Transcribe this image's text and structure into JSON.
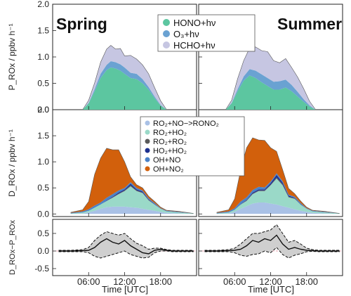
{
  "chart_data": {
    "type": "area",
    "x_ticks": [
      "06:00",
      "12:00",
      "18:00"
    ],
    "xlabel": "Time [UTC]",
    "xlim": [
      "00:00",
      "24:00"
    ],
    "columns": [
      "Spring",
      "Summer"
    ],
    "colors": {
      "HONO": "#5cc6a0",
      "O3": "#6aa2d2",
      "HCHO": "#c6c6e2",
      "RONO2": "#a9c1e6",
      "RO2HO2": "#9ad9c8",
      "RO2RO2": "#5a5a5a",
      "HO2HO2": "#1c2f8e",
      "OHNO": "#4a82c8",
      "OHNO2": "#d2600c"
    },
    "panels": [
      {
        "id": "production",
        "ylabel": "P_ROx / ppbv h⁻¹",
        "ylim": [
          0,
          2.0
        ],
        "yticks": [
          "0.0",
          "0.5",
          "1.0",
          "1.5",
          "2.0"
        ],
        "legend": [
          "HONO+hν",
          "O₃+hν",
          "HCHO+hν"
        ],
        "series_keys": [
          "HONO",
          "O3",
          "HCHO"
        ],
        "spring": {
          "x": [
            5,
            6,
            7,
            8,
            9,
            9.7,
            10.5,
            11.3,
            12,
            13,
            14,
            15,
            16,
            17,
            18,
            19
          ],
          "HONO": [
            0,
            0.12,
            0.35,
            0.6,
            0.75,
            0.8,
            0.78,
            0.74,
            0.68,
            0.6,
            0.58,
            0.5,
            0.38,
            0.22,
            0.08,
            0
          ],
          "O3": [
            0,
            0.01,
            0.04,
            0.08,
            0.1,
            0.12,
            0.12,
            0.12,
            0.12,
            0.1,
            0.1,
            0.08,
            0.05,
            0.03,
            0.01,
            0
          ],
          "HCHO": [
            0,
            0.05,
            0.12,
            0.22,
            0.3,
            0.3,
            0.25,
            0.3,
            0.22,
            0.33,
            0.28,
            0.27,
            0.25,
            0.17,
            0.08,
            0
          ]
        },
        "summer": {
          "x": [
            4.5,
            5.5,
            6.5,
            7.5,
            8.5,
            9.5,
            10.5,
            11.5,
            12.5,
            13.5,
            14.5,
            15.5,
            16.5,
            17.5,
            18.5,
            19.5
          ],
          "HONO": [
            0,
            0.12,
            0.35,
            0.55,
            0.65,
            0.6,
            0.52,
            0.45,
            0.38,
            0.38,
            0.42,
            0.35,
            0.25,
            0.15,
            0.06,
            0
          ],
          "O3": [
            0,
            0.01,
            0.04,
            0.08,
            0.12,
            0.14,
            0.15,
            0.15,
            0.15,
            0.16,
            0.15,
            0.12,
            0.09,
            0.05,
            0.02,
            0
          ],
          "HCHO": [
            0,
            0.05,
            0.2,
            0.3,
            0.4,
            0.45,
            0.45,
            0.5,
            0.4,
            0.35,
            0.4,
            0.33,
            0.28,
            0.2,
            0.08,
            0
          ]
        }
      },
      {
        "id": "destruction",
        "ylabel": "D_ROx / ppbv h⁻¹",
        "ylim": [
          -0.05,
          2.0
        ],
        "yticks": [
          "0.0",
          "0.5",
          "1.0",
          "1.5",
          "2.0"
        ],
        "legend": [
          "RO₂+NO−>RONO₂",
          "RO₂+HO₂",
          "RO₂+RO₂",
          "HO₂+HO₂",
          "OH+NO",
          "OH+NO₂"
        ],
        "series_keys": [
          "RONO2",
          "RO2HO2",
          "RO2RO2",
          "HO2HO2",
          "OHNO",
          "OHNO2"
        ],
        "spring": {
          "x": [
            3,
            5,
            6,
            7,
            8,
            9,
            10,
            11,
            12,
            13,
            14,
            15,
            16,
            17,
            18,
            19,
            21,
            23.5
          ],
          "RONO2": [
            0,
            0.01,
            0.03,
            0.06,
            0.1,
            0.13,
            0.14,
            0.14,
            0.14,
            0.13,
            0.12,
            0.1,
            0.08,
            0.06,
            0.04,
            0.02,
            0.01,
            0
          ],
          "RO2HO2": [
            0.01,
            0.02,
            0.03,
            0.06,
            0.08,
            0.12,
            0.17,
            0.24,
            0.3,
            0.4,
            0.32,
            0.3,
            0.18,
            0.12,
            0.06,
            0.03,
            0.02,
            0.01
          ],
          "RO2RO2": [
            0,
            0,
            0,
            0,
            0,
            0,
            0.01,
            0.01,
            0.01,
            0.02,
            0.01,
            0.01,
            0.01,
            0,
            0,
            0,
            0,
            0
          ],
          "HO2HO2": [
            0,
            0,
            0,
            0,
            0,
            0.01,
            0.01,
            0.02,
            0.02,
            0.03,
            0.02,
            0.02,
            0.01,
            0.01,
            0,
            0,
            0,
            0
          ],
          "OHNO": [
            0.01,
            0.02,
            0.03,
            0.04,
            0.04,
            0.05,
            0.05,
            0.04,
            0.03,
            0.03,
            0.03,
            0.02,
            0.02,
            0.02,
            0.01,
            0.01,
            0.01,
            0
          ],
          "OHNO2": [
            0.01,
            0.03,
            0.15,
            0.6,
            0.85,
            0.95,
            0.85,
            0.78,
            0.5,
            0.1,
            0.06,
            0.05,
            0.04,
            0.03,
            0.02,
            0.01,
            0.01,
            0
          ]
        },
        "summer": {
          "x": [
            3,
            5,
            6,
            7,
            8,
            9,
            10,
            11,
            12,
            13,
            14,
            15,
            16,
            17,
            18,
            19,
            21,
            23.5
          ],
          "RONO2": [
            0,
            0.01,
            0.04,
            0.1,
            0.15,
            0.2,
            0.22,
            0.22,
            0.2,
            0.18,
            0.15,
            0.12,
            0.09,
            0.06,
            0.04,
            0.02,
            0.01,
            0
          ],
          "RO2HO2": [
            0.01,
            0.02,
            0.04,
            0.08,
            0.1,
            0.18,
            0.22,
            0.22,
            0.35,
            0.5,
            0.4,
            0.2,
            0.2,
            0.12,
            0.06,
            0.03,
            0.02,
            0.01
          ],
          "RO2RO2": [
            0,
            0,
            0,
            0,
            0.01,
            0.01,
            0.01,
            0.01,
            0.01,
            0.02,
            0.02,
            0.01,
            0.01,
            0,
            0,
            0,
            0,
            0
          ],
          "HO2HO2": [
            0,
            0,
            0,
            0.01,
            0.01,
            0.02,
            0.02,
            0.02,
            0.03,
            0.05,
            0.03,
            0.02,
            0.01,
            0.01,
            0,
            0,
            0,
            0
          ],
          "OHNO": [
            0.01,
            0.02,
            0.03,
            0.05,
            0.05,
            0.05,
            0.05,
            0.04,
            0.03,
            0.03,
            0.03,
            0.02,
            0.02,
            0.02,
            0.01,
            0.01,
            0.01,
            0
          ],
          "OHNO2": [
            0.01,
            0.03,
            0.18,
            0.6,
            0.95,
            1.0,
            0.9,
            0.9,
            0.65,
            0.42,
            0.22,
            0.12,
            0.06,
            0.04,
            0.02,
            0.01,
            0.01,
            0
          ]
        }
      },
      {
        "id": "difference",
        "ylabel": "D_ROx−P_ROx",
        "ylim": [
          -0.7,
          0.9
        ],
        "yticks": [
          "0.5",
          "0.0",
          "-0.5"
        ],
        "ytick_values": [
          0.5,
          0.0,
          -0.5
        ],
        "spring": {
          "x": [
            1,
            3,
            5,
            6,
            7,
            8,
            9,
            10,
            11,
            12,
            13,
            14,
            15,
            16,
            17,
            18,
            19,
            20,
            22,
            23.5
          ],
          "mean": [
            0.0,
            0.0,
            0.01,
            0.02,
            0.1,
            0.25,
            0.35,
            0.25,
            0.2,
            0.3,
            0.15,
            0.05,
            -0.05,
            -0.08,
            0.02,
            0.05,
            0.02,
            0.0,
            0.0,
            0.0
          ],
          "upper": [
            0.02,
            0.02,
            0.04,
            0.1,
            0.3,
            0.45,
            0.55,
            0.5,
            0.45,
            0.5,
            0.35,
            0.22,
            0.15,
            0.05,
            0.08,
            0.08,
            0.04,
            0.02,
            0.02,
            0.02
          ],
          "lower": [
            -0.02,
            -0.02,
            -0.02,
            -0.05,
            -0.15,
            -0.2,
            -0.15,
            -0.1,
            -0.05,
            0.0,
            -0.1,
            -0.15,
            -0.2,
            -0.18,
            -0.05,
            0.0,
            0.0,
            -0.02,
            -0.02,
            -0.02
          ]
        },
        "summer": {
          "x": [
            1,
            3,
            5,
            6,
            7,
            8,
            9,
            10,
            11,
            12,
            13,
            14,
            15,
            16,
            17,
            18,
            19,
            20,
            22,
            23.5
          ],
          "mean": [
            0.0,
            0.0,
            0.01,
            0.02,
            0.05,
            0.15,
            0.3,
            0.25,
            0.35,
            0.3,
            0.45,
            0.2,
            0.05,
            0.1,
            0.05,
            0.02,
            0.01,
            0.0,
            0.0,
            0.0
          ],
          "upper": [
            0.02,
            0.02,
            0.04,
            0.08,
            0.2,
            0.35,
            0.5,
            0.5,
            0.55,
            0.6,
            0.75,
            0.5,
            0.25,
            0.3,
            0.2,
            0.08,
            0.04,
            0.02,
            0.02,
            0.02
          ],
          "lower": [
            -0.02,
            -0.02,
            -0.02,
            -0.05,
            -0.12,
            -0.15,
            -0.1,
            -0.08,
            0.0,
            -0.05,
            0.1,
            -0.1,
            -0.2,
            -0.12,
            -0.08,
            -0.02,
            -0.01,
            -0.02,
            -0.02,
            -0.02
          ]
        }
      }
    ]
  }
}
